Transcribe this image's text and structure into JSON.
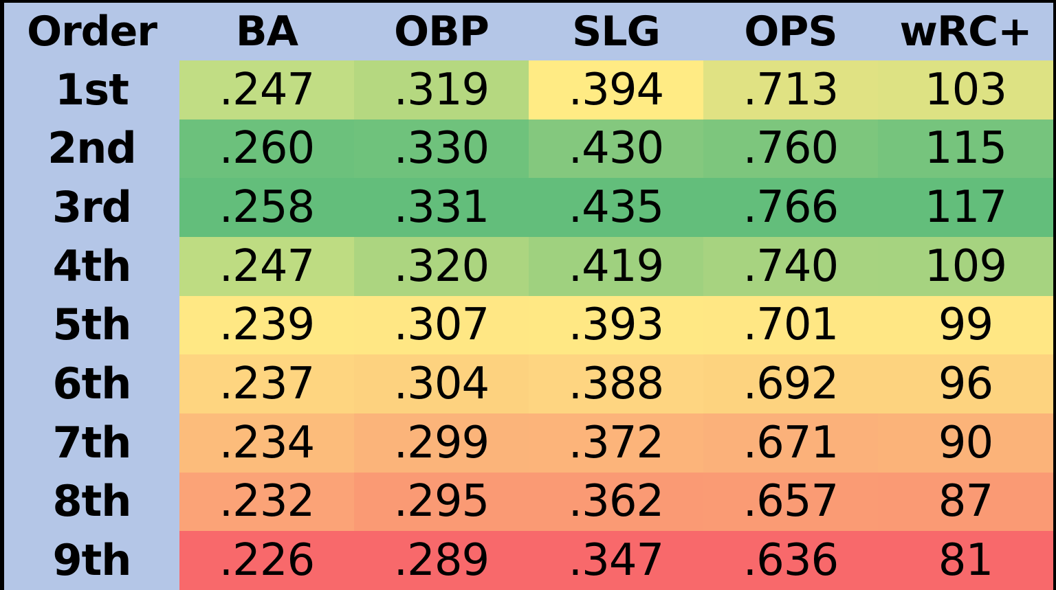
{
  "chart_data": {
    "type": "table",
    "title": "",
    "columns": [
      "Order",
      "BA",
      "OBP",
      "SLG",
      "OPS",
      "wRC+"
    ],
    "rows": [
      {
        "order": "1st",
        "values": [
          ".247",
          ".319",
          ".394",
          ".713",
          "103"
        ]
      },
      {
        "order": "2nd",
        "values": [
          ".260",
          ".330",
          ".430",
          ".760",
          "115"
        ]
      },
      {
        "order": "3rd",
        "values": [
          ".258",
          ".331",
          ".435",
          ".766",
          "117"
        ]
      },
      {
        "order": "4th",
        "values": [
          ".247",
          ".320",
          ".419",
          ".740",
          "109"
        ]
      },
      {
        "order": "5th",
        "values": [
          ".239",
          ".307",
          ".393",
          ".701",
          "99"
        ]
      },
      {
        "order": "6th",
        "values": [
          ".237",
          ".304",
          ".388",
          ".692",
          "96"
        ]
      },
      {
        "order": "7th",
        "values": [
          ".234",
          ".299",
          ".372",
          ".671",
          "90"
        ]
      },
      {
        "order": "8th",
        "values": [
          ".232",
          ".295",
          ".362",
          ".657",
          "87"
        ]
      },
      {
        "order": "9th",
        "values": [
          ".226",
          ".289",
          ".347",
          ".636",
          "81"
        ]
      }
    ],
    "cell_colors": [
      [
        "#c1dd84",
        "#b5d880",
        "#ffeb84",
        "#e0e283",
        "#dde283"
      ],
      [
        "#6cc17c",
        "#6fc27c",
        "#84c87e",
        "#7dc67d",
        "#76c47d"
      ],
      [
        "#63be7b",
        "#63be7b",
        "#63be7b",
        "#63be7b",
        "#63be7b"
      ],
      [
        "#bedc82",
        "#acd580",
        "#9fd17f",
        "#a7d380",
        "#a6d380"
      ],
      [
        "#ffe884",
        "#ffe784",
        "#ffe884",
        "#ffe784",
        "#ffe784"
      ],
      [
        "#fed580",
        "#fdd27f",
        "#fed581",
        "#fdd37f",
        "#fdd37f"
      ],
      [
        "#fcbc7b",
        "#fbb47a",
        "#fcb47a",
        "#fbb17a",
        "#fbb379"
      ],
      [
        "#fba377",
        "#fa9a74",
        "#fa9a74",
        "#fa9b74",
        "#fa9a74"
      ],
      [
        "#f8696b",
        "#f8696b",
        "#f8696b",
        "#f8696b",
        "#f8696b"
      ]
    ],
    "header_color": "#b4c6e7",
    "frame_color": "#000000"
  }
}
